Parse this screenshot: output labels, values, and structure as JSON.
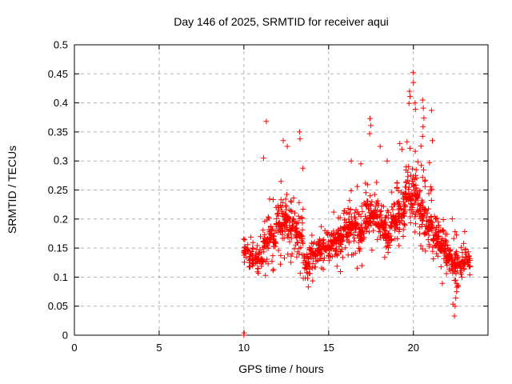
{
  "chart_data": {
    "type": "scatter",
    "title": "Day 146 of 2025, SRMTID for receiver aqui",
    "xlabel": "GPS time / hours",
    "ylabel": "SRMTID / TECUs",
    "xlim": [
      0,
      24.4
    ],
    "ylim": [
      0,
      0.5
    ],
    "xticks": [
      [
        0,
        "0"
      ],
      [
        5,
        "5"
      ],
      [
        10,
        "10"
      ],
      [
        15,
        "15"
      ],
      [
        20,
        "20"
      ]
    ],
    "yticks": [
      [
        0,
        "0"
      ],
      [
        0.05,
        "0.05"
      ],
      [
        0.1,
        "0.1"
      ],
      [
        0.15,
        "0.15"
      ],
      [
        0.2,
        "0.2"
      ],
      [
        0.25,
        "0.25"
      ],
      [
        0.3,
        "0.3"
      ],
      [
        0.35,
        "0.35"
      ],
      [
        0.4,
        "0.4"
      ],
      [
        0.45,
        "0.45"
      ],
      [
        0.5,
        "0.5"
      ]
    ],
    "grid": "dashed, both axes",
    "legend": "none",
    "marker": "plus",
    "marker_color": "#ff0000",
    "grid_color": "#b0b0b0",
    "axis_color": "#000000",
    "background_color": "#ffffff",
    "series_name": "SRMTID for receiver aqui",
    "data_span_hours": [
      9.97,
      23.35
    ],
    "value_range_tecus": [
      0.0,
      0.452
    ],
    "notable_points": [
      [
        10.0,
        0.0
      ],
      [
        10.02,
        0.004
      ],
      [
        11.32,
        0.368
      ],
      [
        11.16,
        0.305
      ],
      [
        12.32,
        0.335
      ],
      [
        12.56,
        0.325
      ],
      [
        13.28,
        0.35
      ],
      [
        13.31,
        0.338
      ],
      [
        16.33,
        0.3
      ],
      [
        16.9,
        0.295
      ],
      [
        17.44,
        0.373
      ],
      [
        17.49,
        0.361
      ],
      [
        17.42,
        0.347
      ],
      [
        18.04,
        0.325
      ],
      [
        18.45,
        0.3
      ],
      [
        19.2,
        0.33
      ],
      [
        19.32,
        0.32
      ],
      [
        19.77,
        0.42
      ],
      [
        19.8,
        0.411
      ],
      [
        19.74,
        0.399
      ],
      [
        19.98,
        0.452
      ],
      [
        20.0,
        0.435
      ],
      [
        20.1,
        0.4
      ],
      [
        20.12,
        0.389
      ],
      [
        20.54,
        0.405
      ],
      [
        20.58,
        0.391
      ],
      [
        20.62,
        0.374
      ],
      [
        20.57,
        0.359
      ],
      [
        21.07,
        0.387
      ],
      [
        21.12,
        0.335
      ],
      [
        22.42,
        0.033
      ],
      [
        22.46,
        0.05
      ],
      [
        22.5,
        0.064
      ],
      [
        22.55,
        0.075
      ]
    ],
    "density_bins_x0_x1_n_ymin_ymax_ymode": [
      [
        9.97,
        10.3,
        26,
        0.1,
        0.185,
        0.145
      ],
      [
        10.3,
        10.7,
        32,
        0.075,
        0.19,
        0.13
      ],
      [
        10.7,
        11.1,
        36,
        0.07,
        0.21,
        0.13
      ],
      [
        11.1,
        11.5,
        36,
        0.08,
        0.25,
        0.16
      ],
      [
        11.5,
        11.9,
        40,
        0.09,
        0.285,
        0.17
      ],
      [
        11.9,
        12.3,
        46,
        0.1,
        0.32,
        0.19
      ],
      [
        12.3,
        12.7,
        46,
        0.1,
        0.325,
        0.2
      ],
      [
        12.7,
        13.1,
        42,
        0.095,
        0.31,
        0.185
      ],
      [
        13.1,
        13.5,
        40,
        0.085,
        0.33,
        0.17
      ],
      [
        13.5,
        13.9,
        36,
        0.065,
        0.22,
        0.125
      ],
      [
        13.9,
        14.3,
        36,
        0.075,
        0.21,
        0.14
      ],
      [
        14.3,
        14.7,
        38,
        0.085,
        0.215,
        0.15
      ],
      [
        14.7,
        15.1,
        40,
        0.08,
        0.21,
        0.15
      ],
      [
        15.1,
        15.5,
        42,
        0.09,
        0.23,
        0.16
      ],
      [
        15.5,
        15.9,
        46,
        0.1,
        0.25,
        0.17
      ],
      [
        15.9,
        16.3,
        48,
        0.11,
        0.285,
        0.185
      ],
      [
        16.3,
        16.7,
        46,
        0.1,
        0.29,
        0.19
      ],
      [
        16.7,
        17.1,
        42,
        0.1,
        0.275,
        0.175
      ],
      [
        17.1,
        17.5,
        48,
        0.115,
        0.34,
        0.2
      ],
      [
        17.5,
        17.9,
        48,
        0.12,
        0.3,
        0.205
      ],
      [
        17.9,
        18.3,
        46,
        0.11,
        0.3,
        0.19
      ],
      [
        18.3,
        18.7,
        42,
        0.11,
        0.27,
        0.17
      ],
      [
        18.7,
        19.1,
        46,
        0.12,
        0.31,
        0.195
      ],
      [
        19.1,
        19.5,
        46,
        0.125,
        0.315,
        0.21
      ],
      [
        19.5,
        19.9,
        50,
        0.13,
        0.39,
        0.235
      ],
      [
        19.9,
        20.3,
        50,
        0.12,
        0.4,
        0.24
      ],
      [
        20.3,
        20.7,
        46,
        0.11,
        0.37,
        0.21
      ],
      [
        20.7,
        21.1,
        46,
        0.1,
        0.34,
        0.19
      ],
      [
        21.1,
        21.5,
        46,
        0.1,
        0.3,
        0.165
      ],
      [
        21.5,
        21.9,
        46,
        0.085,
        0.25,
        0.15
      ],
      [
        21.9,
        22.3,
        46,
        0.06,
        0.22,
        0.135
      ],
      [
        22.3,
        22.7,
        46,
        0.035,
        0.21,
        0.12
      ],
      [
        22.7,
        23.1,
        46,
        0.075,
        0.195,
        0.125
      ],
      [
        23.1,
        23.35,
        20,
        0.08,
        0.17,
        0.125
      ]
    ],
    "seed": 7
  }
}
